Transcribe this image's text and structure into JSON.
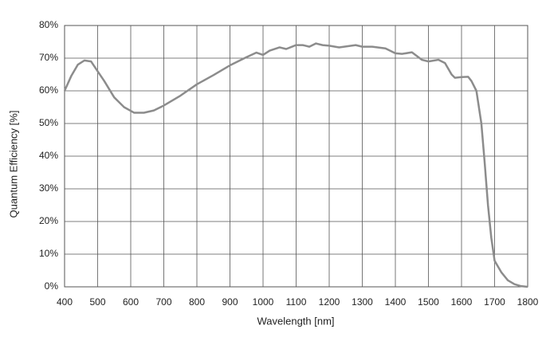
{
  "chart_data": {
    "type": "line",
    "x_label": "Wavelength [nm]",
    "y_label": "Quantum Efficiency [%]",
    "x": [
      400,
      420,
      440,
      460,
      480,
      500,
      520,
      550,
      580,
      610,
      640,
      670,
      700,
      750,
      800,
      850,
      900,
      950,
      980,
      1000,
      1020,
      1050,
      1070,
      1100,
      1120,
      1140,
      1160,
      1180,
      1200,
      1230,
      1280,
      1300,
      1330,
      1370,
      1400,
      1420,
      1450,
      1480,
      1500,
      1530,
      1550,
      1570,
      1580,
      1600,
      1620,
      1630,
      1645,
      1660,
      1670,
      1680,
      1690,
      1700,
      1720,
      1740,
      1760,
      1780,
      1800
    ],
    "series": [
      {
        "color": "#8c8c8c",
        "values": [
          60,
          64.5,
          68,
          69.3,
          69,
          66,
          63,
          58,
          55,
          53.3,
          53.3,
          54,
          55.5,
          58.5,
          62,
          64.8,
          67.8,
          70.3,
          71.7,
          71,
          72.3,
          73.3,
          72.8,
          74,
          74,
          73.5,
          74.5,
          74,
          73.8,
          73.3,
          74,
          73.5,
          73.5,
          73,
          71.5,
          71.3,
          71.8,
          69.5,
          69,
          69.5,
          68.5,
          65,
          64,
          64.2,
          64.3,
          63,
          60,
          50,
          38,
          25,
          15,
          8,
          4.5,
          2,
          0.8,
          0.2,
          0
        ]
      }
    ],
    "xlim": [
      400,
      1800
    ],
    "xticks": [
      400,
      500,
      600,
      700,
      800,
      900,
      1000,
      1100,
      1200,
      1300,
      1400,
      1500,
      1600,
      1700,
      1800
    ],
    "ylim": [
      0,
      80
    ],
    "yticks": [
      {
        "value": 0,
        "label": "0%"
      },
      {
        "value": 10,
        "label": "10%"
      },
      {
        "value": 20,
        "label": "20%"
      },
      {
        "value": 30,
        "label": "30%"
      },
      {
        "value": 40,
        "label": "40%"
      },
      {
        "value": 50,
        "label": "50%"
      },
      {
        "value": 60,
        "label": "60%"
      },
      {
        "value": 70,
        "label": "70%"
      },
      {
        "value": 80,
        "label": "80%"
      }
    ],
    "grid": true
  }
}
